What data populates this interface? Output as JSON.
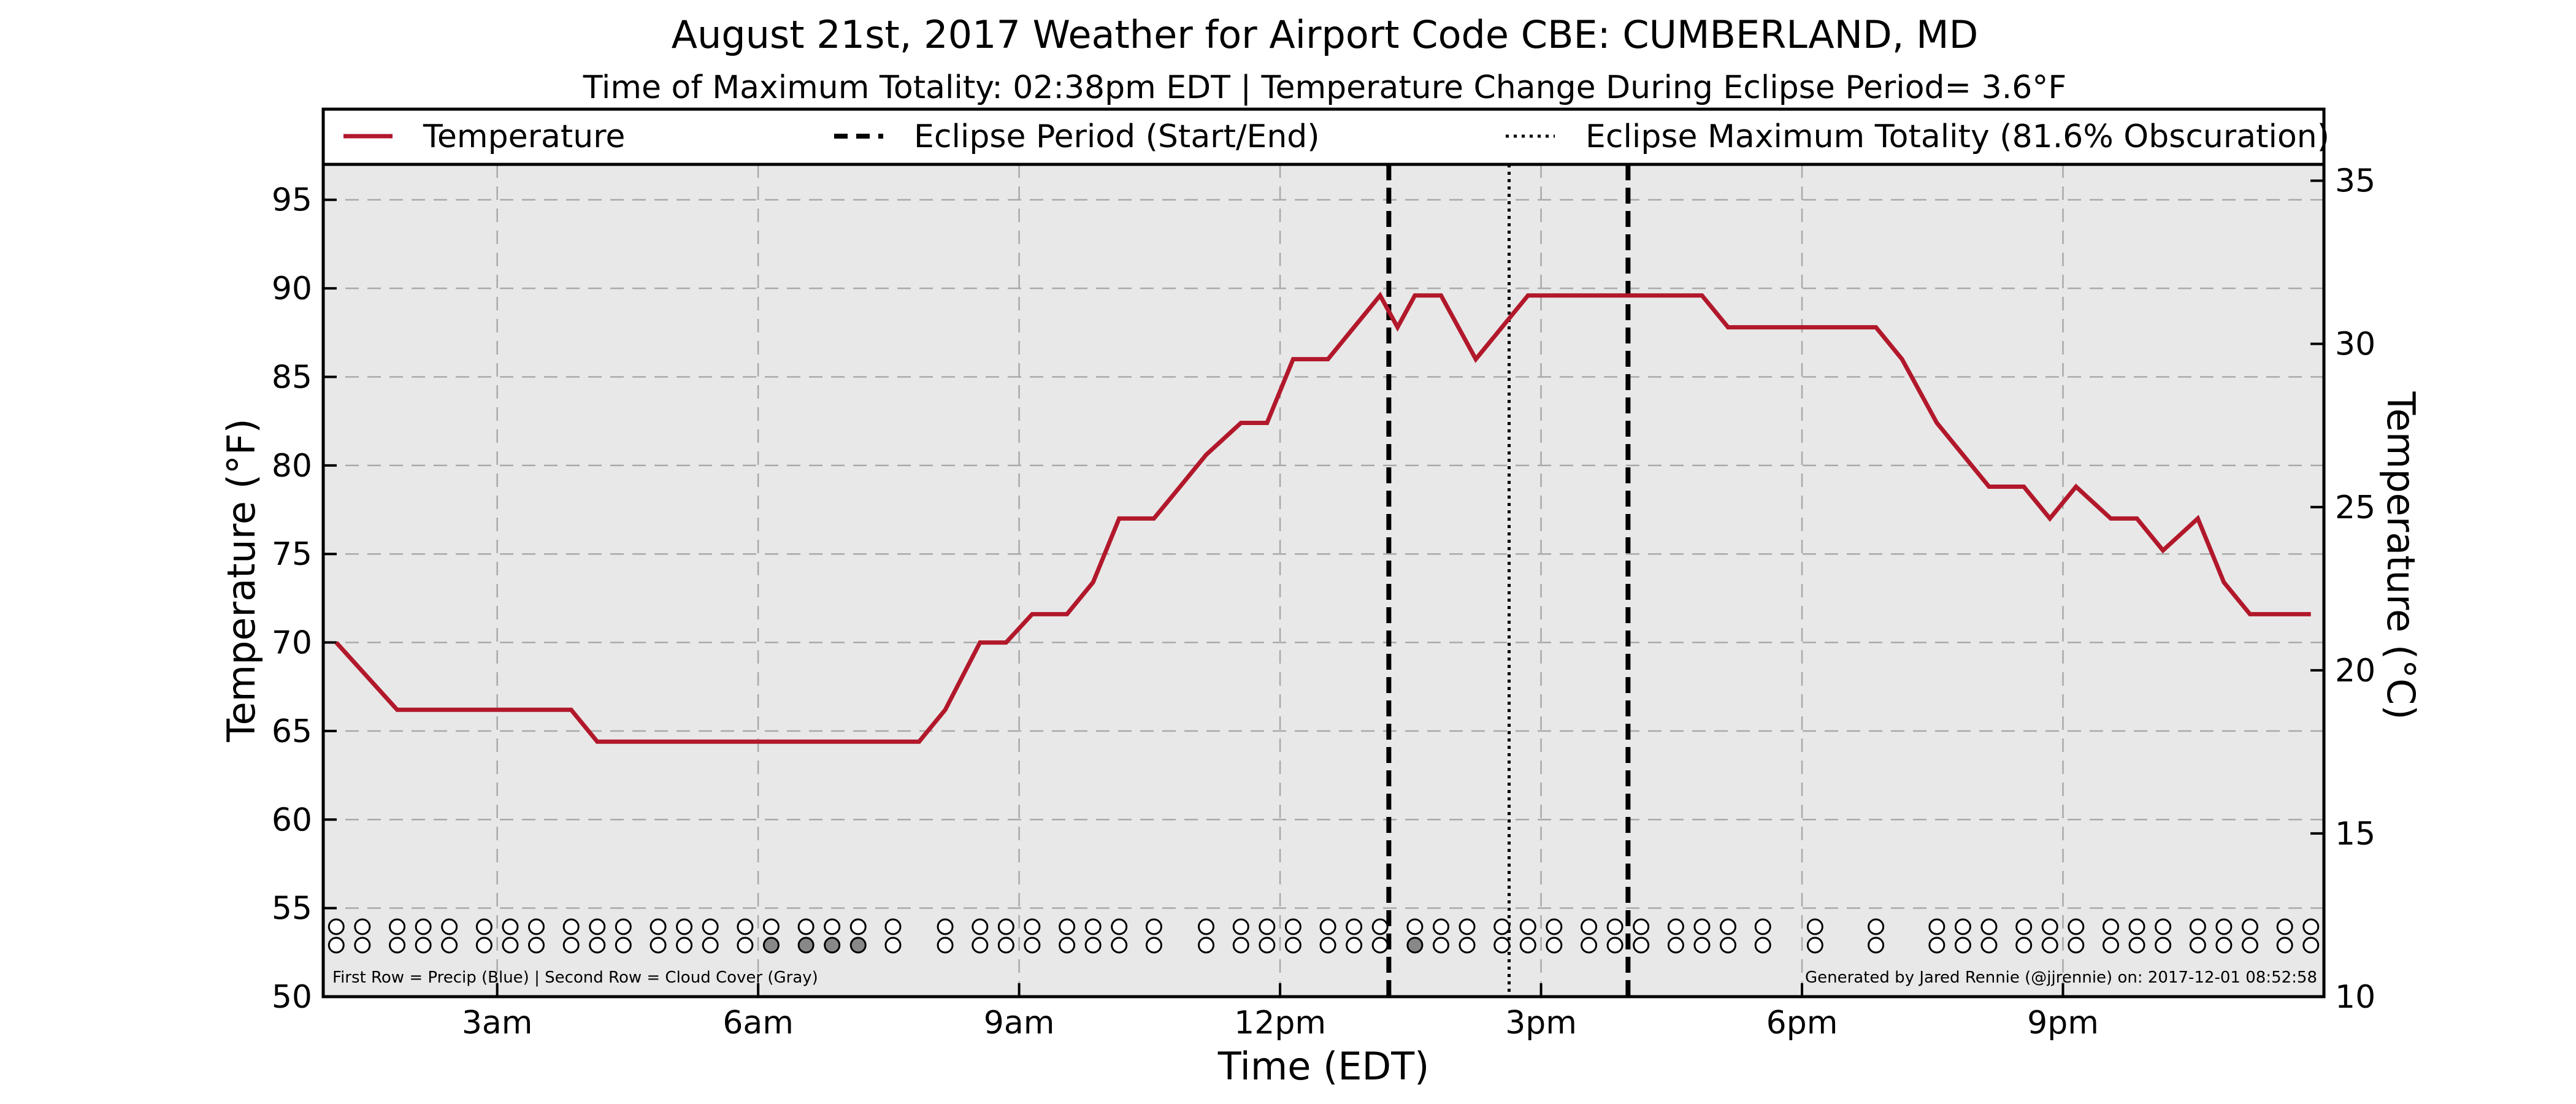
{
  "title": "August 21st, 2017 Weather for Airport Code CBE: CUMBERLAND, MD",
  "subtitle": "Time of Maximum Totality: 02:38pm EDT | Temperature Change During Eclipse Period= 3.6°F",
  "footer_left": "First Row = Precip (Blue) | Second Row = Cloud Cover (Gray)",
  "footer_right": "Generated by Jared Rennie (@jjrennie) on: 2017-12-01 08:52:58",
  "legend": [
    {
      "label": "Temperature",
      "style": "solid",
      "color": "#b2182b"
    },
    {
      "label": "Eclipse Period (Start/End)",
      "style": "dashed",
      "color": "#000000"
    },
    {
      "label": "Eclipse Maximum Totality (81.6% Obscuration)",
      "style": "dotted",
      "color": "#000000"
    }
  ],
  "colors": {
    "temperature": "#b2182b",
    "plot_background": "#e8e8e8",
    "cloud_fill": "#888888"
  },
  "chart_data": {
    "type": "line",
    "xlabel": "Time (EDT)",
    "ylabel": "Temperature (°F)",
    "ylabel_right": "Temperature (°C)",
    "xlim": [
      1.0,
      24.0
    ],
    "ylim": [
      50,
      97
    ],
    "ylim_right": [
      10,
      35.5
    ],
    "x_ticks": [
      3,
      6,
      9,
      12,
      15,
      18,
      21
    ],
    "x_tick_labels": [
      "3am",
      "6am",
      "9am",
      "12pm",
      "3pm",
      "6pm",
      "9pm"
    ],
    "y_ticks": [
      50,
      55,
      60,
      65,
      70,
      75,
      80,
      85,
      90,
      95
    ],
    "y_ticks_right": [
      10,
      15,
      20,
      25,
      30,
      35
    ],
    "grid": true,
    "legend_position": "top",
    "eclipse_start": 13.25,
    "eclipse_end": 16.0,
    "eclipse_max": 14.633,
    "series": [
      {
        "name": "Temperature",
        "x": [
          1.15,
          1.85,
          2.15,
          2.85,
          3.15,
          3.45,
          3.85,
          4.15,
          4.45,
          4.85,
          5.15,
          5.85,
          6.15,
          6.85,
          7.15,
          7.55,
          7.85,
          8.15,
          8.55,
          8.85,
          9.15,
          9.55,
          9.85,
          10.15,
          10.55,
          10.85,
          11.15,
          11.55,
          11.85,
          12.15,
          12.55,
          12.85,
          13.15,
          13.35,
          13.55,
          13.85,
          14.25,
          14.85,
          15.15,
          15.55,
          15.85,
          16.15,
          16.55,
          16.85,
          17.15,
          17.55,
          17.85,
          18.15,
          18.55,
          18.85,
          19.15,
          19.55,
          19.85,
          20.15,
          20.55,
          20.85,
          21.15,
          21.55,
          21.85,
          22.15,
          22.55,
          22.85,
          23.15,
          23.55,
          23.85
        ],
        "y": [
          70.0,
          66.2,
          66.2,
          66.2,
          66.2,
          66.2,
          66.2,
          64.4,
          64.4,
          64.4,
          64.4,
          64.4,
          64.4,
          64.4,
          64.4,
          64.4,
          64.4,
          66.2,
          70.0,
          70.0,
          71.6,
          71.6,
          73.4,
          77.0,
          77.0,
          78.8,
          80.6,
          82.4,
          82.4,
          86.0,
          86.0,
          87.8,
          89.6,
          87.8,
          89.6,
          89.6,
          86.0,
          89.6,
          89.6,
          89.6,
          89.6,
          89.6,
          89.6,
          89.6,
          87.8,
          87.8,
          87.8,
          87.8,
          87.8,
          87.8,
          86.0,
          82.4,
          80.6,
          78.8,
          78.8,
          77.0,
          78.8,
          77.0,
          77.0,
          75.2,
          77.0,
          73.4,
          71.6,
          71.6,
          71.6
        ]
      }
    ],
    "precip_row": {
      "x": [
        1.15,
        1.45,
        1.85,
        2.15,
        2.45,
        2.85,
        3.15,
        3.45,
        3.85,
        4.15,
        4.45,
        4.85,
        5.15,
        5.45,
        5.85,
        6.15,
        6.55,
        6.85,
        7.15,
        7.55,
        8.15,
        8.55,
        8.85,
        9.15,
        9.55,
        9.85,
        10.15,
        10.55,
        11.15,
        11.55,
        11.85,
        12.15,
        12.55,
        12.85,
        13.15,
        13.55,
        13.85,
        14.15,
        14.55,
        14.85,
        15.15,
        15.55,
        15.85,
        16.15,
        16.55,
        16.85,
        17.15,
        17.55,
        18.15,
        18.85,
        19.55,
        19.85,
        20.15,
        20.55,
        20.85,
        21.15,
        21.55,
        21.85,
        22.15,
        22.55,
        22.85,
        23.15,
        23.55,
        23.85
      ],
      "filled": []
    },
    "cloud_row": {
      "x": [
        1.15,
        1.45,
        1.85,
        2.15,
        2.45,
        2.85,
        3.15,
        3.45,
        3.85,
        4.15,
        4.45,
        4.85,
        5.15,
        5.45,
        5.85,
        6.15,
        6.55,
        6.85,
        7.15,
        7.55,
        8.15,
        8.55,
        8.85,
        9.15,
        9.55,
        9.85,
        10.15,
        10.55,
        11.15,
        11.55,
        11.85,
        12.15,
        12.55,
        12.85,
        13.15,
        13.55,
        13.85,
        14.15,
        14.55,
        14.85,
        15.15,
        15.55,
        15.85,
        16.15,
        16.55,
        16.85,
        17.15,
        17.55,
        18.15,
        18.85,
        19.55,
        19.85,
        20.15,
        20.55,
        20.85,
        21.15,
        21.55,
        21.85,
        22.15,
        22.55,
        22.85,
        23.15,
        23.55,
        23.85
      ],
      "filled": [
        6.15,
        6.55,
        6.85,
        7.15,
        13.55
      ]
    }
  }
}
